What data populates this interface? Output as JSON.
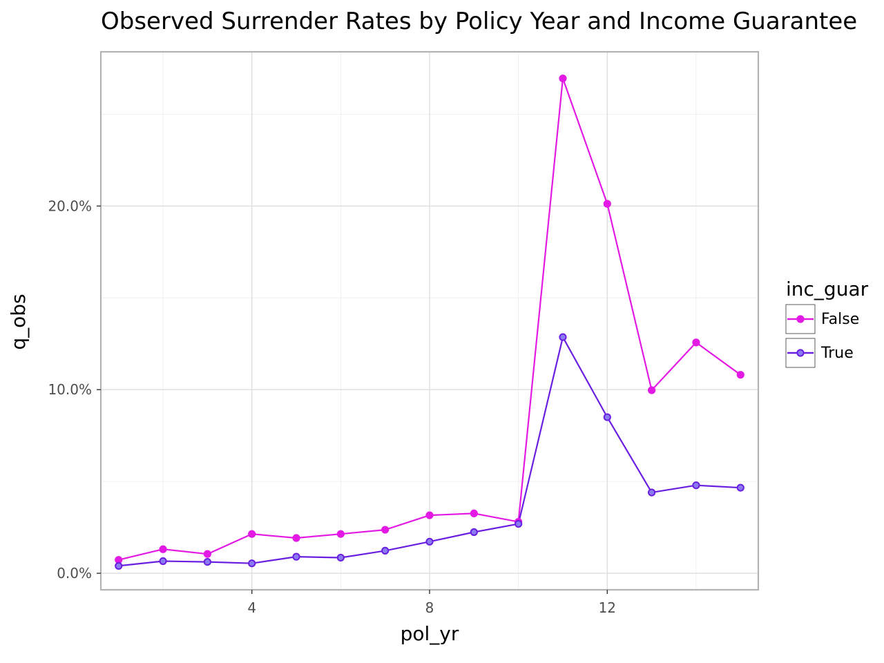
{
  "chart_data": {
    "type": "line",
    "title": "Observed Surrender Rates by Policy Year and Income Guarantee",
    "xlabel": "pol_yr",
    "ylabel": "q_obs",
    "xlim": [
      0.6,
      15.4
    ],
    "ylim": [
      -0.009,
      0.284
    ],
    "x_ticks": [
      4,
      8,
      12
    ],
    "y_ticks": [
      0.0,
      0.1,
      0.2
    ],
    "y_tick_labels": [
      "0.0%",
      "10.0%",
      "20.0%"
    ],
    "x_minor_ticks": [
      2,
      6,
      10,
      14
    ],
    "y_minor_ticks": [
      0.05,
      0.15,
      0.25
    ],
    "grid": true,
    "legend": {
      "title": "inc_guar",
      "placement": "right"
    },
    "x": [
      1,
      2,
      3,
      4,
      5,
      6,
      7,
      8,
      9,
      10,
      11,
      12,
      13,
      14,
      15
    ],
    "series": [
      {
        "name": "False",
        "color": "#e31ae3",
        "values": [
          0.0073,
          0.0131,
          0.0105,
          0.0214,
          0.0192,
          0.0214,
          0.0237,
          0.0316,
          0.0326,
          0.028,
          0.2695,
          0.2012,
          0.0997,
          0.1257,
          0.1081
        ]
      },
      {
        "name": "True",
        "color": "#6a1ee0",
        "values": [
          0.004,
          0.0066,
          0.0062,
          0.0054,
          0.009,
          0.0085,
          0.0123,
          0.0172,
          0.0224,
          0.0269,
          0.1286,
          0.085,
          0.044,
          0.0479,
          0.0466
        ]
      }
    ]
  }
}
